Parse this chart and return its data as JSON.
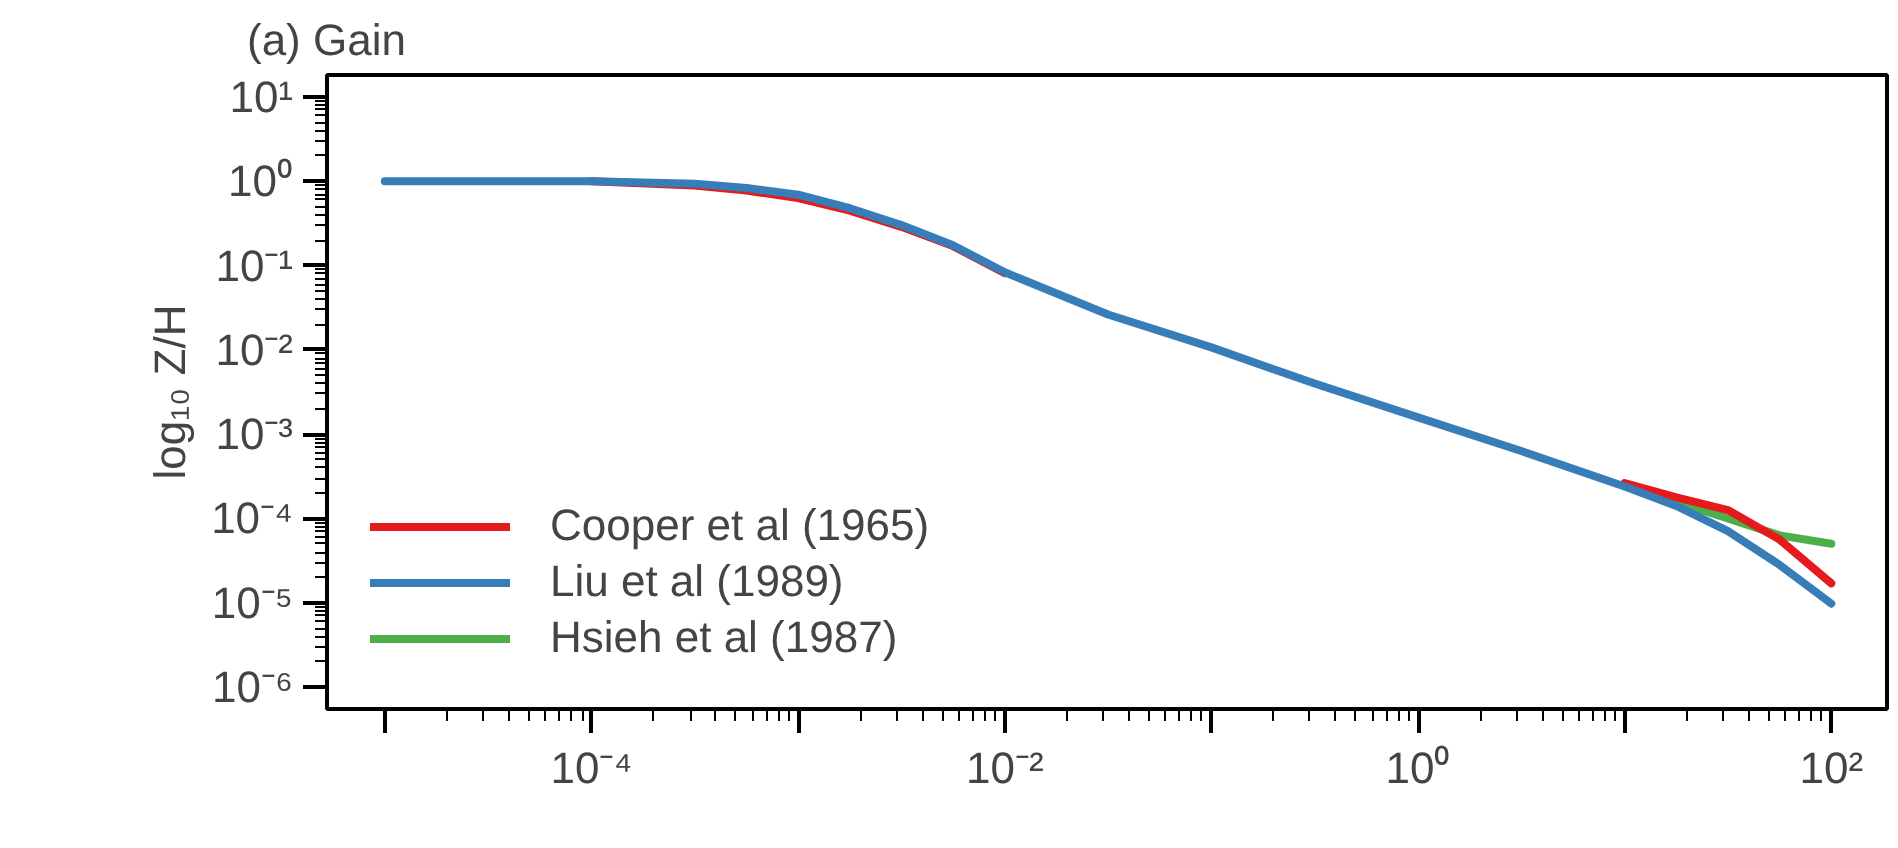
{
  "chart_data": {
    "type": "line",
    "title": "(a) Gain",
    "ylabel": "log₁₀ Z/H",
    "x": [
      1e-05,
      3.16e-05,
      0.0001,
      0.000316,
      0.000562,
      0.001,
      0.00178,
      0.00316,
      0.00562,
      0.01,
      0.0316,
      0.1,
      0.316,
      1,
      3.16,
      10,
      17.8,
      31.6,
      56.2,
      100
    ],
    "series": [
      {
        "name": "Cooper et al (1965)",
        "color": "#e41a1c",
        "values": [
          null,
          null,
          1,
          0.891,
          0.776,
          0.631,
          0.447,
          0.288,
          0.17,
          0.0813,
          null,
          null,
          null,
          null,
          null,
          0.000263,
          0.000178,
          0.000126,
          5.62e-05,
          1.7e-05
        ]
      },
      {
        "name": "Liu et al (1989)",
        "color": "#377eb8",
        "values": [
          1,
          1,
          1,
          0.933,
          0.832,
          0.692,
          0.479,
          0.302,
          0.174,
          0.0832,
          0.0263,
          0.0107,
          0.00398,
          0.00158,
          0.000631,
          0.00024,
          0.000141,
          7.08e-05,
          2.82e-05,
          9.77e-06
        ]
      },
      {
        "name": "Hsieh et al (1987)",
        "color": "#4daf4a",
        "x": [
          17.8,
          31.6,
          56.2,
          100
        ],
        "values": [
          0.000158,
          0.0001,
          6.31e-05,
          5.01e-05
        ]
      }
    ],
    "log": "xy",
    "grid": false,
    "legend": "bottom left",
    "line_style": "solid",
    "xlim": [
      5.25e-06,
      186
    ],
    "ylim": [
      5.5e-07,
      18.2
    ],
    "xticks": [
      {
        "value": 1e-05,
        "label": null
      },
      {
        "value": 0.0001,
        "label": "10⁻⁴"
      },
      {
        "value": 0.001,
        "label": null
      },
      {
        "value": 0.01,
        "label": "10⁻²"
      },
      {
        "value": 0.1,
        "label": null
      },
      {
        "value": 1,
        "label": "10⁰"
      },
      {
        "value": 10,
        "label": null
      },
      {
        "value": 100,
        "label": "10²"
      }
    ],
    "yticks": [
      {
        "value": 1e-06,
        "label": "10⁻⁶"
      },
      {
        "value": 1e-05,
        "label": "10⁻⁵"
      },
      {
        "value": 0.0001,
        "label": "10⁻⁴"
      },
      {
        "value": 0.001,
        "label": "10⁻³"
      },
      {
        "value": 0.01,
        "label": "10⁻²"
      },
      {
        "value": 0.1,
        "label": "10⁻¹"
      },
      {
        "value": 1,
        "label": "10⁰"
      },
      {
        "value": 10,
        "label": "10¹"
      }
    ]
  }
}
